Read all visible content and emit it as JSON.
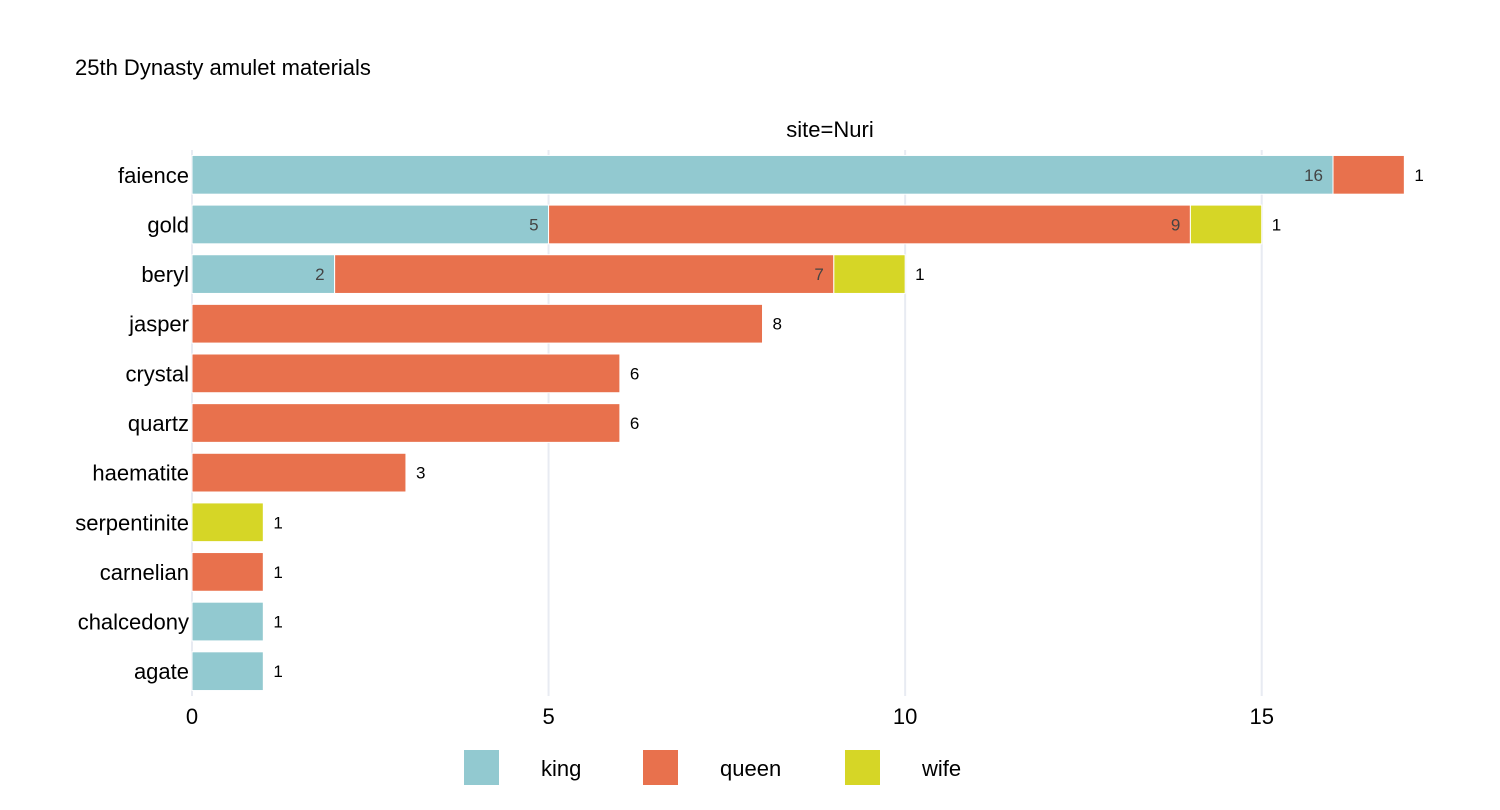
{
  "chart_data": {
    "type": "bar",
    "orientation": "horizontal",
    "barmode": "stack",
    "title": "25th Dynasty amulet materials",
    "facet_label": "site=Nuri",
    "categories": [
      "faience",
      "gold",
      "beryl",
      "jasper",
      "crystal",
      "quartz",
      "haematite",
      "serpentinite",
      "carnelian",
      "chalcedony",
      "agate"
    ],
    "series": [
      {
        "name": "king",
        "color": "#92c9d0",
        "values": [
          16,
          5,
          2,
          0,
          0,
          0,
          0,
          0,
          0,
          1,
          1
        ]
      },
      {
        "name": "queen",
        "color": "#e8714d",
        "values": [
          1,
          9,
          7,
          8,
          6,
          6,
          3,
          0,
          1,
          0,
          0
        ]
      },
      {
        "name": "wife",
        "color": "#d6d626",
        "values": [
          0,
          1,
          1,
          0,
          0,
          0,
          0,
          1,
          0,
          0,
          0
        ]
      }
    ],
    "xlim": [
      0,
      17.5
    ],
    "xticks": [
      0,
      5,
      10,
      15
    ],
    "grid": true,
    "legend_position": "bottom"
  }
}
